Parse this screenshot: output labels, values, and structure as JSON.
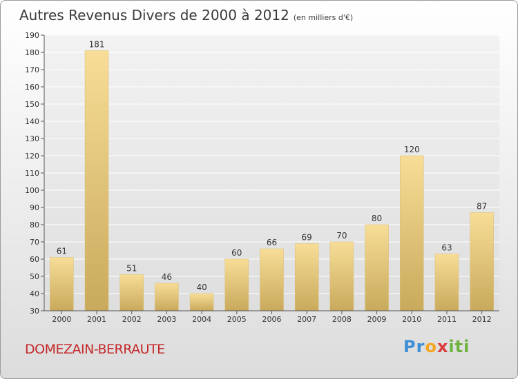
{
  "title": {
    "main": "Autres Revenus Divers de 2000 à 2012",
    "unit": "(en milliers d'€)"
  },
  "place": "DOMEZAIN-BERRAUTE",
  "logo": {
    "letters": [
      "P",
      "r",
      "o",
      "x",
      "i",
      "t",
      "i"
    ],
    "colors": [
      "#3f8fd6",
      "#3f8fd6",
      "#f5a623",
      "#d93a3a",
      "#6db33f",
      "#6db33f",
      "#6db33f"
    ]
  },
  "chart_data": {
    "type": "bar",
    "categories": [
      "2000",
      "2001",
      "2002",
      "2003",
      "2004",
      "2005",
      "2006",
      "2007",
      "2008",
      "2009",
      "2010",
      "2011",
      "2012"
    ],
    "values": [
      61,
      181,
      51,
      46,
      40,
      60,
      66,
      69,
      70,
      80,
      120,
      63,
      87
    ],
    "ylim": [
      30,
      190
    ],
    "ytick_step": 10,
    "grid": true,
    "bar_color": "#e6c87a",
    "data_labels": true
  }
}
